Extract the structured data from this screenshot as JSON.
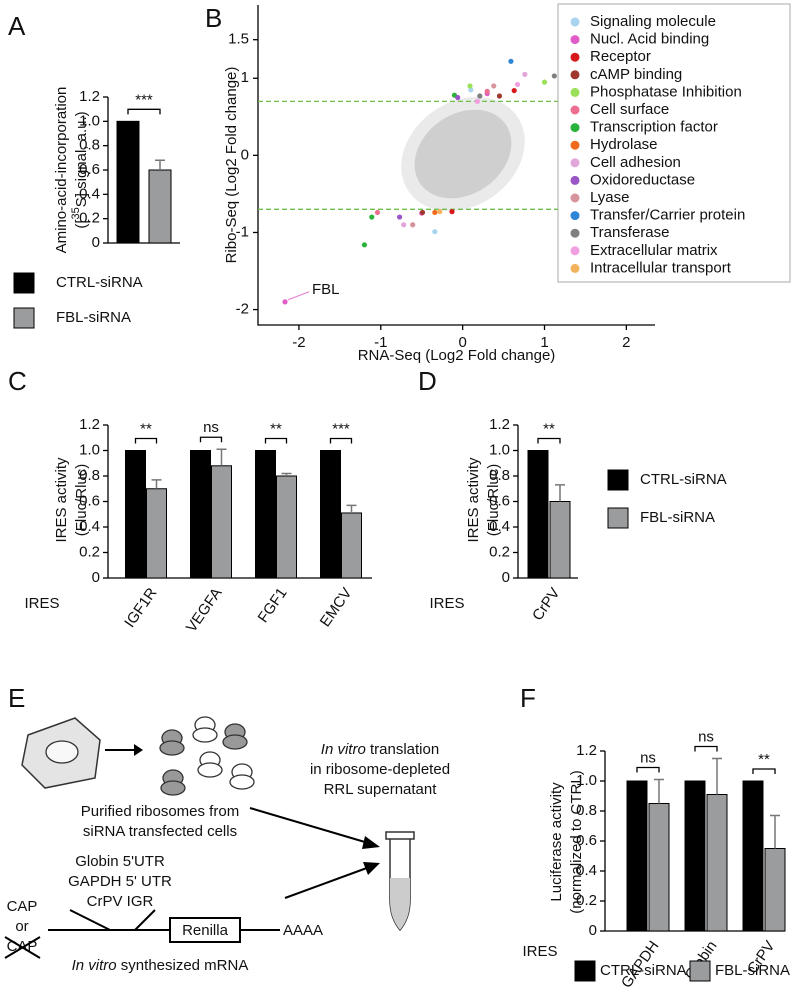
{
  "chart_data": [
    {
      "panel": "A",
      "type": "bar",
      "categories": [
        null
      ],
      "ylabel": {
        "line1": "Amino-acid-incorporation",
        "pre": "([",
        "sup": "35",
        "post": "S] signal, a.u.)"
      },
      "series": [
        {
          "name": "CTRL-siRNA",
          "color": "#000000",
          "values": [
            1.0
          ],
          "errors": [
            0
          ]
        },
        {
          "name": "FBL-siRNA",
          "color": "#9a9c9e",
          "values": [
            0.6
          ],
          "errors": [
            0.08
          ]
        }
      ],
      "significance": [
        "***"
      ],
      "ylim": [
        0,
        1.2
      ],
      "yticks": [
        0,
        0.2,
        0.4,
        0.6,
        0.8,
        {
          "value": 1,
          "label": "1.0"
        },
        1.2
      ]
    },
    {
      "panel": "B",
      "type": "scatter",
      "xlabel": "RNA-Seq (Log2 Fold change)",
      "ylabel": "Ribo-Seq (Log2 Fold change)",
      "xlim": [
        -2.5,
        2.35
      ],
      "ylim": [
        -2.2,
        1.95
      ],
      "xticks": [
        -2,
        -1,
        0,
        1,
        2
      ],
      "yticks": [
        -2,
        -1,
        0,
        1,
        1.5
      ],
      "hlines": [
        0.7,
        -0.7
      ],
      "hline_color": "#6cc04a",
      "annotations": [
        {
          "text": "FBL",
          "x": -2.17,
          "y": -1.9
        }
      ],
      "series": [
        {
          "name": "Signaling molecule",
          "color": "#a9d3ef",
          "x": [
            -0.34,
            0.1
          ],
          "y": [
            -0.99,
            0.85
          ]
        },
        {
          "name": "Nucl. Acid binding",
          "color": "#e05cc6",
          "x": [
            1.2,
            0.3,
            -0.5,
            -2.17
          ],
          "y": [
            1.66,
            0.8,
            -0.75,
            -1.9
          ]
        },
        {
          "name": "Receptor",
          "color": "#d7191c",
          "x": [
            0.63,
            -0.13
          ],
          "y": [
            0.84,
            -0.73
          ]
        },
        {
          "name": "cAMP binding",
          "color": "#a0392d",
          "x": [
            0.45,
            -0.49
          ],
          "y": [
            0.77,
            -0.74
          ]
        },
        {
          "name": "Phosphatase Inhibition",
          "color": "#9ae05a",
          "x": [
            1.0,
            0.09
          ],
          "y": [
            0.95,
            0.9
          ]
        },
        {
          "name": "Cell surface",
          "color": "#ec6f8f",
          "x": [
            -1.04,
            0.3
          ],
          "y": [
            -0.74,
            0.83
          ]
        },
        {
          "name": "Transcription factor",
          "color": "#2ab33a",
          "x": [
            -1.11,
            -1.2,
            -0.1
          ],
          "y": [
            -0.8,
            -1.16,
            0.78
          ]
        },
        {
          "name": "Hydrolase",
          "color": "#f06a1e",
          "x": [
            -0.34
          ],
          "y": [
            -0.74
          ]
        },
        {
          "name": "Cell adhesion",
          "color": "#e3a6da",
          "x": [
            0.76,
            -0.72
          ],
          "y": [
            1.05,
            -0.9
          ]
        },
        {
          "name": "Oxidoreductase",
          "color": "#9a55c6",
          "x": [
            -0.06,
            -0.77
          ],
          "y": [
            0.75,
            -0.8
          ]
        },
        {
          "name": "Lyase",
          "color": "#d7949c",
          "x": [
            -0.61,
            0.38
          ],
          "y": [
            -0.9,
            0.9
          ]
        },
        {
          "name": "Transfer/Carrier protein",
          "color": "#2f86d6",
          "x": [
            0.59
          ],
          "y": [
            1.22
          ]
        },
        {
          "name": "Transferase",
          "color": "#7f7f7f",
          "x": [
            1.12,
            0.21
          ],
          "y": [
            1.03,
            0.77
          ]
        },
        {
          "name": "Extracellular matrix",
          "color": "#f0a0e0",
          "x": [
            0.18,
            0.67
          ],
          "y": [
            0.7,
            0.92
          ]
        },
        {
          "name": "Intracellular transport",
          "color": "#f2b35c",
          "x": [
            -0.28
          ],
          "y": [
            -0.73
          ]
        }
      ]
    },
    {
      "panel": "C",
      "type": "bar",
      "xlabel": "IRES",
      "categories": [
        "IGF1R",
        "VEGFA",
        "FGF1",
        "EMCV"
      ],
      "ylabel": {
        "line1": "IRES activity",
        "line2": "(Fluc/Rluc)"
      },
      "series": [
        {
          "color": "#000000",
          "values": [
            1.0,
            1.0,
            1.0,
            1.0
          ],
          "errors": [
            0,
            0,
            0,
            0
          ]
        },
        {
          "color": "#9a9c9e",
          "values": [
            0.7,
            0.88,
            0.8,
            0.51
          ],
          "errors": [
            0.07,
            0.13,
            0.02,
            0.06
          ]
        }
      ],
      "significance": [
        "**",
        "ns",
        "**",
        "***"
      ],
      "ylim": [
        0,
        1.2
      ],
      "yticks": [
        0,
        0.2,
        0.4,
        0.6,
        0.8,
        {
          "value": 1,
          "label": "1.0"
        },
        1.2
      ]
    },
    {
      "panel": "D",
      "type": "bar",
      "xlabel": "IRES",
      "categories": [
        "CrPV"
      ],
      "ylabel": {
        "line1": "IRES activity",
        "line2": "(Fluc/Rluc)"
      },
      "series": [
        {
          "name": "CTRL-siRNA",
          "color": "#000000",
          "values": [
            1.0
          ],
          "errors": [
            0
          ]
        },
        {
          "name": "FBL-siRNA",
          "color": "#9a9c9e",
          "values": [
            0.6
          ],
          "errors": [
            0.13
          ]
        }
      ],
      "significance": [
        "**"
      ],
      "ylim": [
        0,
        1.2
      ],
      "yticks": [
        0,
        0.2,
        0.4,
        0.6,
        0.8,
        {
          "value": 1,
          "label": "1.0"
        },
        1.2
      ]
    },
    {
      "panel": "F",
      "type": "bar",
      "xlabel": "IRES",
      "categories": [
        "GAPDH",
        "Globin",
        "CrPV"
      ],
      "ylabel": {
        "line1": "Luciferase activity",
        "line2": "(normalized to CTRL)"
      },
      "series": [
        {
          "name": "CTRL-siRNA",
          "color": "#000000",
          "values": [
            1.0,
            1.0,
            1.0
          ],
          "errors": [
            0,
            0,
            0
          ]
        },
        {
          "name": "FBL-siRNA",
          "color": "#9a9c9e",
          "values": [
            0.85,
            0.91,
            0.55
          ],
          "errors": [
            0.16,
            0.24,
            0.22
          ]
        }
      ],
      "significance": [
        "ns",
        "ns",
        "**"
      ],
      "ylim": [
        0,
        1.2
      ],
      "yticks": [
        0,
        0.2,
        0.4,
        0.6,
        0.8,
        {
          "value": 1,
          "label": "1.0"
        },
        1.2
      ]
    }
  ],
  "diagram": {
    "panel": "E",
    "translation": {
      "italic": "In vitro",
      "rest": " translation",
      "line2": "in ribosome-depleted",
      "line3": "RRL supernatant"
    },
    "ribosomes": {
      "line1": "Purified ribosomes from",
      "line2": "siRNA transfected cells"
    },
    "utrs": [
      "Globin 5'UTR",
      "GAPDH 5' UTR",
      "CrPV IGR"
    ],
    "cap": [
      "CAP",
      "or",
      "CAP"
    ],
    "reporter": "Renilla",
    "polya": "AAAA",
    "mrna": {
      "italic": "In vitro",
      "rest": " synthesized mRNA"
    }
  }
}
